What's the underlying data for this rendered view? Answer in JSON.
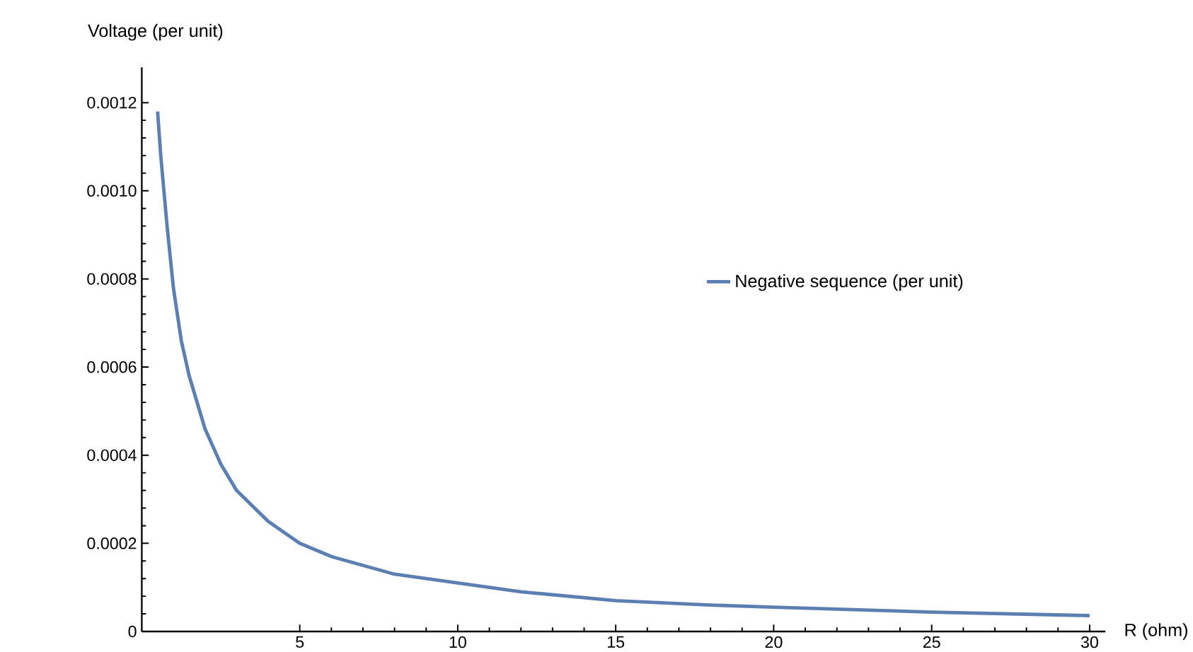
{
  "chart_data": {
    "type": "line",
    "xlabel": "R (ohm)",
    "ylabel": "Voltage (per unit)",
    "x": [
      0.5,
      0.6,
      0.8,
      1,
      1.25,
      1.5,
      2,
      2.5,
      3,
      4,
      5,
      6,
      7,
      8,
      10,
      12,
      15,
      18,
      20,
      25,
      30
    ],
    "series": [
      {
        "name": "Negative sequence (per unit)",
        "color": "#5b7fb0",
        "values": [
          0.00118,
          0.00108,
          0.00092,
          0.00078,
          0.00066,
          0.00058,
          0.00046,
          0.00038,
          0.00032,
          0.00025,
          0.0002,
          0.00017,
          0.00015,
          0.00013,
          0.00011,
          9e-05,
          7e-05,
          6e-05,
          5.5e-05,
          4.4e-05,
          3.6e-05
        ]
      }
    ],
    "xlim": [
      0,
      30.5
    ],
    "ylim": [
      0,
      0.00128
    ],
    "xticks": [
      5,
      10,
      15,
      20,
      25,
      30
    ],
    "yticks": [
      0,
      {
        "value": 0.0002,
        "label": "0.0002"
      },
      {
        "value": 0.0004,
        "label": "0.0004"
      },
      {
        "value": 0.0006,
        "label": "0.0006"
      },
      {
        "value": 0.0008,
        "label": "0.0008"
      },
      {
        "value": 0.001,
        "label": "0.0010"
      },
      {
        "value": 0.0012,
        "label": "0.0012"
      }
    ],
    "legend": "right",
    "grid": false,
    "marker": "none",
    "line_style": "solid"
  }
}
